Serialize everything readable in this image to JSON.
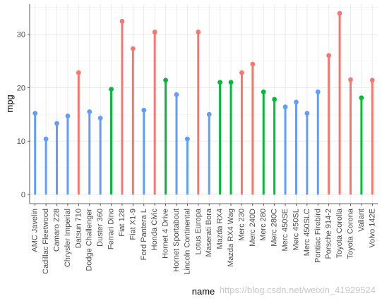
{
  "chart_data": {
    "type": "lollipop",
    "xlabel": "name",
    "ylabel": "mpg",
    "ylim": [
      -1.7,
      35.6
    ],
    "yticks": [
      0,
      10,
      20,
      30
    ],
    "grid": true,
    "legend": "none",
    "categories": [
      "AMC Javelin",
      "Cadillac Fleetwood",
      "Camaro Z28",
      "Chrysler Imperial",
      "Datsun 710",
      "Dodge Challenger",
      "Duster 360",
      "Ferrari Dino",
      "Fiat 128",
      "Fiat X1-9",
      "Ford Pantera L",
      "Honda Civic",
      "Hornet 4 Drive",
      "Hornet Sportabout",
      "Lincoln Continental",
      "Lotus Europa",
      "Maserati Bora",
      "Mazda RX4",
      "Mazda RX4 Wag",
      "Merc 230",
      "Merc 240D",
      "Merc 280",
      "Merc 280C",
      "Merc 450SE",
      "Merc 450SL",
      "Merc 450SLC",
      "Pontiac Firebird",
      "Porsche 914-2",
      "Toyota Corolla",
      "Toyota Corona",
      "Valiant",
      "Volvo 142E"
    ],
    "values": [
      15.2,
      10.4,
      13.3,
      14.7,
      22.8,
      15.5,
      14.3,
      19.7,
      32.4,
      27.3,
      15.8,
      30.4,
      21.4,
      18.7,
      10.4,
      30.4,
      15.0,
      21.0,
      21.0,
      22.8,
      24.4,
      19.2,
      17.8,
      16.4,
      17.3,
      15.2,
      19.2,
      26.0,
      33.9,
      21.5,
      18.1,
      21.4
    ],
    "groups": [
      "below",
      "below",
      "below",
      "below",
      "above",
      "below",
      "below",
      "average",
      "above",
      "above",
      "below",
      "above",
      "average",
      "below",
      "below",
      "above",
      "below",
      "average",
      "average",
      "above",
      "above",
      "average",
      "average",
      "below",
      "below",
      "below",
      "below",
      "above",
      "above",
      "above",
      "average",
      "above"
    ],
    "colors": {
      "above": "#f8766d",
      "average": "#00ba38",
      "below": "#619cff"
    }
  },
  "watermark": "https://blog.csdn.net/weixin_41929524"
}
